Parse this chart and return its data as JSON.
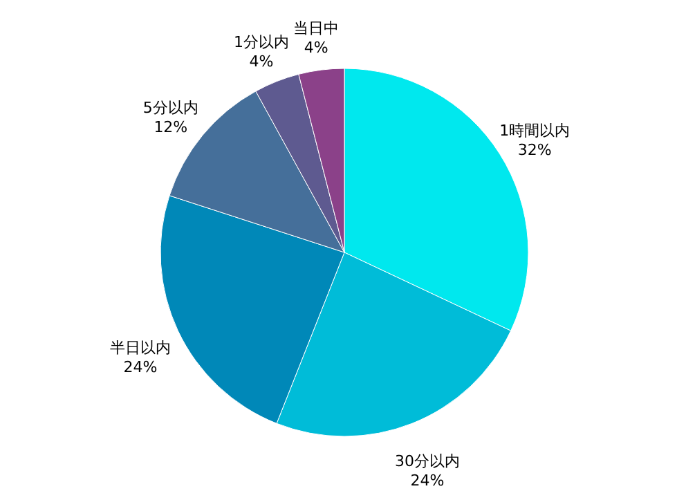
{
  "chart_data": {
    "type": "pie",
    "categories": [
      "1時間以内",
      "30分以内",
      "半日以内",
      "5分以内",
      "1分以内",
      "当日中"
    ],
    "values": [
      32,
      24,
      24,
      12,
      4,
      4
    ],
    "value_labels": [
      "32%",
      "24%",
      "24%",
      "12%",
      "4%",
      "4%"
    ],
    "colors": [
      "#00e8ee",
      "#00bcd8",
      "#0088b8",
      "#456f9a",
      "#5e5a90",
      "#8b4189"
    ]
  }
}
